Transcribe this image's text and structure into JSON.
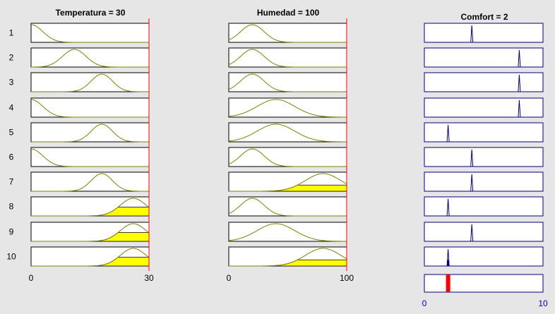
{
  "window": {
    "background": "#e6e6e6"
  },
  "columns": [
    {
      "title": "Temperatura = 30",
      "type": "input",
      "range": [
        0,
        30
      ],
      "input_value": 30,
      "tick_labels": [
        "0",
        "30"
      ]
    },
    {
      "title": "Humedad = 100",
      "type": "input",
      "range": [
        0,
        100
      ],
      "input_value": 100,
      "tick_labels": [
        "0",
        "100"
      ]
    },
    {
      "title": "Comfort = 2",
      "type": "output",
      "range": [
        0,
        10
      ],
      "output_value": 2,
      "tick_labels": [
        "0",
        "10"
      ]
    }
  ],
  "rules": [
    {
      "label": "1",
      "temp": {
        "c": 0,
        "s": 3.0,
        "firing": 0
      },
      "hum": {
        "c": 20,
        "s": 10,
        "firing": 0
      },
      "comfort": {
        "c": 4,
        "firing": 0
      }
    },
    {
      "label": "2",
      "temp": {
        "c": 11,
        "s": 3.0,
        "firing": 0
      },
      "hum": {
        "c": 20,
        "s": 10,
        "firing": 0
      },
      "comfort": {
        "c": 8,
        "firing": 0
      }
    },
    {
      "label": "3",
      "temp": {
        "c": 18,
        "s": 2.7,
        "firing": 0
      },
      "hum": {
        "c": 20,
        "s": 10,
        "firing": 0
      },
      "comfort": {
        "c": 8,
        "firing": 0
      }
    },
    {
      "label": "4",
      "temp": {
        "c": 0,
        "s": 3.0,
        "firing": 0
      },
      "hum": {
        "c": 40,
        "s": 16,
        "firing": 0
      },
      "comfort": {
        "c": 8,
        "firing": 0
      }
    },
    {
      "label": "5",
      "temp": {
        "c": 18,
        "s": 2.7,
        "firing": 0
      },
      "hum": {
        "c": 40,
        "s": 16,
        "firing": 0
      },
      "comfort": {
        "c": 2,
        "firing": 0
      }
    },
    {
      "label": "6",
      "temp": {
        "c": 0,
        "s": 3.0,
        "firing": 0
      },
      "hum": {
        "c": 20,
        "s": 10,
        "firing": 0
      },
      "comfort": {
        "c": 4,
        "firing": 0
      }
    },
    {
      "label": "7",
      "temp": {
        "c": 18,
        "s": 2.7,
        "firing": 0
      },
      "hum": {
        "c": 80,
        "s": 15,
        "firing": 0.35
      },
      "comfort": {
        "c": 4,
        "firing": 0
      }
    },
    {
      "label": "8",
      "temp": {
        "c": 26,
        "s": 3.3,
        "firing": 0.5
      },
      "hum": {
        "c": 20,
        "s": 10,
        "firing": 0
      },
      "comfort": {
        "c": 2,
        "firing": 0
      }
    },
    {
      "label": "9",
      "temp": {
        "c": 26,
        "s": 3.3,
        "firing": 0.5
      },
      "hum": {
        "c": 40,
        "s": 16,
        "firing": 0
      },
      "comfort": {
        "c": 4,
        "firing": 0
      }
    },
    {
      "label": "10",
      "temp": {
        "c": 26,
        "s": 3.3,
        "firing": 0.5
      },
      "hum": {
        "c": 80,
        "s": 15,
        "firing": 0.35
      },
      "comfort": {
        "c": 2,
        "firing": 0.35
      }
    }
  ],
  "aggregate": {
    "value": 2
  },
  "colors": {
    "input_curve": "#808000",
    "output_curve": "#000080",
    "fill": "#ffff00",
    "indicator": "#ff0000",
    "input_frame": "#000000",
    "output_frame": "#000080",
    "text": "#000000",
    "output_tick_text": "#0000cc"
  }
}
